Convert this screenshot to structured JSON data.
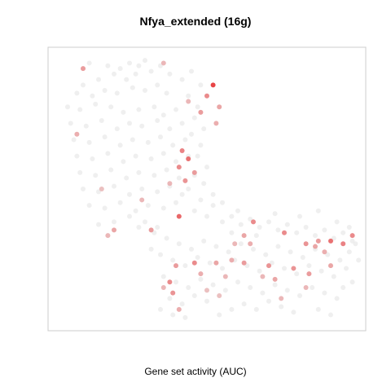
{
  "chart_data": {
    "type": "scatter",
    "title": "Nfya_extended (16g)",
    "xlabel": "Gene set activity (AUC)",
    "ylabel": "",
    "xlim": [
      0,
      100
    ],
    "ylim": [
      0,
      100
    ],
    "axes_visible": false,
    "grid": false,
    "color_scale": {
      "low": "#e8e8e8",
      "high": "#e41a1c",
      "value_range": [
        0,
        1
      ]
    },
    "cell_clusters_note": null,
    "points_grey": [
      [
        12,
        96
      ],
      [
        18,
        95
      ],
      [
        22,
        94
      ],
      [
        25,
        96
      ],
      [
        28,
        95
      ],
      [
        30,
        97
      ],
      [
        20,
        92
      ],
      [
        15,
        90
      ],
      [
        10,
        88
      ],
      [
        24,
        90
      ],
      [
        27,
        92
      ],
      [
        32,
        93
      ],
      [
        8,
        85
      ],
      [
        13,
        84
      ],
      [
        17,
        86
      ],
      [
        21,
        85
      ],
      [
        26,
        87
      ],
      [
        30,
        86
      ],
      [
        34,
        88
      ],
      [
        37,
        85
      ],
      [
        5,
        80
      ],
      [
        9,
        79
      ],
      [
        14,
        81
      ],
      [
        19,
        80
      ],
      [
        23,
        78
      ],
      [
        28,
        79
      ],
      [
        33,
        80
      ],
      [
        36,
        77
      ],
      [
        40,
        79
      ],
      [
        6,
        74
      ],
      [
        11,
        73
      ],
      [
        16,
        75
      ],
      [
        21,
        72
      ],
      [
        25,
        74
      ],
      [
        29,
        73
      ],
      [
        34,
        75
      ],
      [
        38,
        72
      ],
      [
        42,
        74
      ],
      [
        7,
        68
      ],
      [
        12,
        67
      ],
      [
        17,
        69
      ],
      [
        22,
        66
      ],
      [
        26,
        68
      ],
      [
        31,
        67
      ],
      [
        35,
        69
      ],
      [
        39,
        66
      ],
      [
        43,
        68
      ],
      [
        8,
        62
      ],
      [
        13,
        61
      ],
      [
        18,
        63
      ],
      [
        23,
        60
      ],
      [
        27,
        62
      ],
      [
        32,
        61
      ],
      [
        36,
        63
      ],
      [
        40,
        60
      ],
      [
        44,
        62
      ],
      [
        9,
        56
      ],
      [
        14,
        55
      ],
      [
        19,
        57
      ],
      [
        24,
        54
      ],
      [
        28,
        56
      ],
      [
        33,
        55
      ],
      [
        37,
        57
      ],
      [
        41,
        54
      ],
      [
        10,
        50
      ],
      [
        15,
        49
      ],
      [
        20,
        51
      ],
      [
        25,
        48
      ],
      [
        29,
        50
      ],
      [
        34,
        49
      ],
      [
        38,
        51
      ],
      [
        42,
        48
      ],
      [
        12,
        44
      ],
      [
        17,
        43
      ],
      [
        22,
        45
      ],
      [
        27,
        42
      ],
      [
        31,
        44
      ],
      [
        36,
        43
      ],
      [
        40,
        45
      ],
      [
        35,
        95
      ],
      [
        38,
        92
      ],
      [
        42,
        90
      ],
      [
        45,
        93
      ],
      [
        48,
        88
      ],
      [
        44,
        84
      ],
      [
        47,
        80
      ],
      [
        46,
        76
      ],
      [
        49,
        72
      ],
      [
        45,
        70
      ],
      [
        48,
        66
      ],
      [
        47,
        62
      ],
      [
        50,
        58
      ],
      [
        46,
        55
      ],
      [
        49,
        52
      ],
      [
        44,
        50
      ],
      [
        48,
        46
      ],
      [
        46,
        42
      ],
      [
        50,
        40
      ],
      [
        52,
        44
      ],
      [
        55,
        38
      ],
      [
        58,
        40
      ],
      [
        61,
        37
      ],
      [
        64,
        39
      ],
      [
        67,
        36
      ],
      [
        70,
        38
      ],
      [
        73,
        35
      ],
      [
        76,
        37
      ],
      [
        79,
        34
      ],
      [
        82,
        36
      ],
      [
        85,
        33
      ],
      [
        88,
        35
      ],
      [
        91,
        32
      ],
      [
        94,
        34
      ],
      [
        97,
        31
      ],
      [
        33,
        34
      ],
      [
        37,
        32
      ],
      [
        41,
        30
      ],
      [
        45,
        28
      ],
      [
        49,
        31
      ],
      [
        53,
        29
      ],
      [
        57,
        27
      ],
      [
        61,
        30
      ],
      [
        65,
        28
      ],
      [
        69,
        26
      ],
      [
        73,
        29
      ],
      [
        77,
        27
      ],
      [
        81,
        25
      ],
      [
        85,
        28
      ],
      [
        89,
        26
      ],
      [
        93,
        24
      ],
      [
        96,
        27
      ],
      [
        35,
        26
      ],
      [
        39,
        24
      ],
      [
        43,
        22
      ],
      [
        47,
        25
      ],
      [
        51,
        23
      ],
      [
        55,
        21
      ],
      [
        59,
        24
      ],
      [
        63,
        22
      ],
      [
        67,
        20
      ],
      [
        71,
        23
      ],
      [
        75,
        21
      ],
      [
        79,
        19
      ],
      [
        83,
        22
      ],
      [
        87,
        20
      ],
      [
        91,
        18
      ],
      [
        95,
        21
      ],
      [
        36,
        18
      ],
      [
        40,
        16
      ],
      [
        44,
        14
      ],
      [
        48,
        17
      ],
      [
        52,
        15
      ],
      [
        56,
        13
      ],
      [
        60,
        16
      ],
      [
        64,
        14
      ],
      [
        68,
        12
      ],
      [
        72,
        15
      ],
      [
        76,
        13
      ],
      [
        80,
        11
      ],
      [
        84,
        14
      ],
      [
        88,
        12
      ],
      [
        92,
        10
      ],
      [
        38,
        10
      ],
      [
        42,
        8
      ],
      [
        46,
        11
      ],
      [
        50,
        9
      ],
      [
        62,
        8
      ],
      [
        66,
        6
      ],
      [
        70,
        9
      ],
      [
        74,
        7
      ],
      [
        78,
        5
      ],
      [
        86,
        6
      ],
      [
        90,
        4
      ],
      [
        35,
        6
      ],
      [
        39,
        4
      ],
      [
        43,
        3
      ],
      [
        54,
        4
      ],
      [
        58,
        6
      ],
      [
        25,
        40
      ],
      [
        30,
        38
      ],
      [
        20,
        38
      ],
      [
        15,
        37
      ],
      [
        52,
        48
      ],
      [
        55,
        45
      ],
      [
        32,
        28
      ],
      [
        34,
        36
      ],
      [
        60,
        42
      ],
      [
        58,
        34
      ],
      [
        66,
        33
      ],
      [
        72,
        41
      ],
      [
        80,
        40
      ],
      [
        86,
        42
      ],
      [
        92,
        38
      ],
      [
        96,
        36
      ],
      [
        98,
        30
      ],
      [
        99,
        24
      ],
      [
        97,
        16
      ],
      [
        94,
        14
      ],
      [
        28,
        36
      ]
    ],
    "points_colored": [
      [
        10,
        94,
        0.45
      ],
      [
        36,
        96,
        0.3
      ],
      [
        52,
        88,
        0.95
      ],
      [
        50,
        84,
        0.55
      ],
      [
        54,
        80,
        0.4
      ],
      [
        48,
        78,
        0.45
      ],
      [
        53,
        74,
        0.35
      ],
      [
        44,
        82,
        0.3
      ],
      [
        8,
        70,
        0.35
      ],
      [
        42,
        64,
        0.6
      ],
      [
        44,
        61,
        0.7
      ],
      [
        41,
        58,
        0.55
      ],
      [
        46,
        56,
        0.45
      ],
      [
        43,
        53,
        0.5
      ],
      [
        38,
        52,
        0.3
      ],
      [
        16,
        50,
        0.25
      ],
      [
        29,
        46,
        0.3
      ],
      [
        41,
        40,
        0.75
      ],
      [
        20,
        35,
        0.4
      ],
      [
        18,
        33,
        0.3
      ],
      [
        32,
        35,
        0.45
      ],
      [
        65,
        38,
        0.55
      ],
      [
        62,
        33,
        0.4
      ],
      [
        75,
        34,
        0.55
      ],
      [
        82,
        30,
        0.5
      ],
      [
        86,
        31,
        0.45
      ],
      [
        90,
        31,
        0.7
      ],
      [
        94,
        30,
        0.6
      ],
      [
        97,
        33,
        0.55
      ],
      [
        85,
        29,
        0.4
      ],
      [
        88,
        27,
        0.35
      ],
      [
        40,
        22,
        0.45
      ],
      [
        46,
        23,
        0.55
      ],
      [
        53,
        23,
        0.4
      ],
      [
        58,
        24,
        0.35
      ],
      [
        62,
        23,
        0.45
      ],
      [
        70,
        22,
        0.5
      ],
      [
        78,
        21,
        0.5
      ],
      [
        48,
        19,
        0.35
      ],
      [
        56,
        18,
        0.3
      ],
      [
        72,
        17,
        0.4
      ],
      [
        38,
        16,
        0.55
      ],
      [
        39,
        12,
        0.5
      ],
      [
        36,
        14,
        0.3
      ],
      [
        41,
        6,
        0.35
      ],
      [
        50,
        13,
        0.25
      ],
      [
        83,
        19,
        0.45
      ],
      [
        90,
        22,
        0.4
      ],
      [
        68,
        18,
        0.3
      ],
      [
        74,
        10,
        0.3
      ],
      [
        54,
        11,
        0.25
      ],
      [
        82,
        14,
        0.3
      ],
      [
        64,
        30,
        0.35
      ],
      [
        59,
        30,
        0.3
      ]
    ]
  }
}
